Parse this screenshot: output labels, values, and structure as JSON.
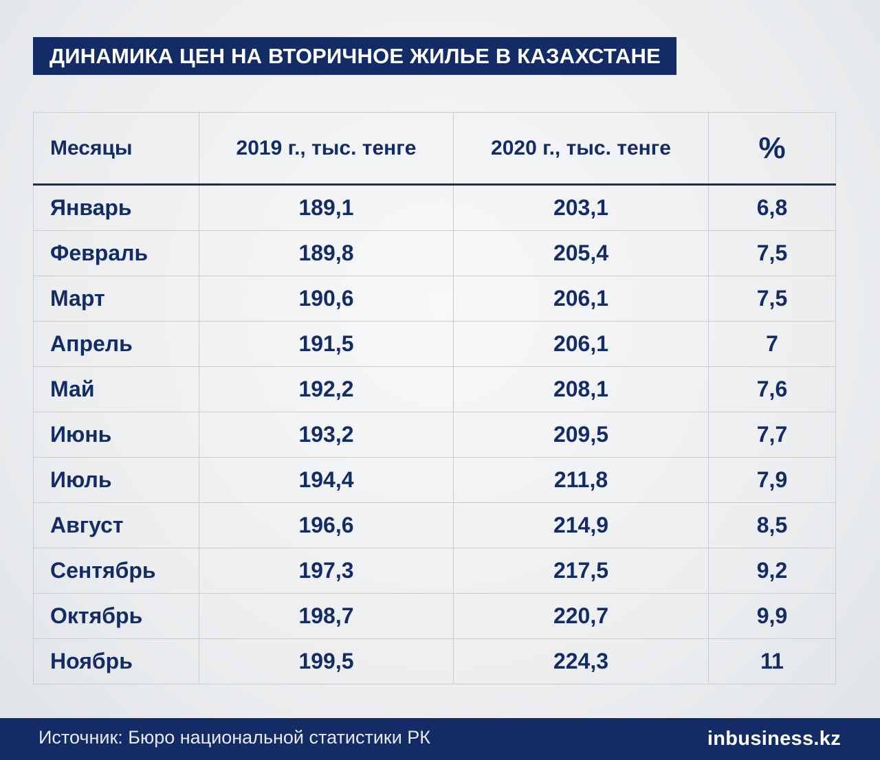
{
  "title": "ДИНАМИКА ЦЕН НА ВТОРИЧНОЕ ЖИЛЬЕ В КАЗАХСТАНЕ",
  "chart_data": {
    "type": "table",
    "title": "ДИНАМИКА ЦЕН НА ВТОРИЧНОЕ ЖИЛЬЕ В КАЗАХСТАНЕ",
    "columns": [
      "Месяцы",
      "2019 г., тыс. тенге",
      "2020 г., тыс. тенге",
      "%"
    ],
    "rows": [
      [
        "Январь",
        "189,1",
        "203,1",
        "6,8"
      ],
      [
        "Февраль",
        "189,8",
        "205,4",
        "7,5"
      ],
      [
        "Март",
        "190,6",
        "206,1",
        "7,5"
      ],
      [
        "Апрель",
        "191,5",
        "206,1",
        "7"
      ],
      [
        "Май",
        "192,2",
        "208,1",
        "7,6"
      ],
      [
        "Июнь",
        "193,2",
        "209,5",
        "7,7"
      ],
      [
        "Июль",
        "194,4",
        "211,8",
        "7,9"
      ],
      [
        "Август",
        "196,6",
        "214,9",
        "8,5"
      ],
      [
        "Сентябрь",
        "197,3",
        "217,5",
        "9,2"
      ],
      [
        "Октябрь",
        "198,7",
        "220,7",
        "9,9"
      ],
      [
        "Ноябрь",
        "199,5",
        "224,3",
        "11"
      ]
    ]
  },
  "footer": {
    "source": "Источник: Бюро национальной статистики РК",
    "logo_prefix": "in",
    "logo_main": "business.kz"
  },
  "colors": {
    "navy": "#142c66",
    "grid": "#c9ccd0"
  }
}
